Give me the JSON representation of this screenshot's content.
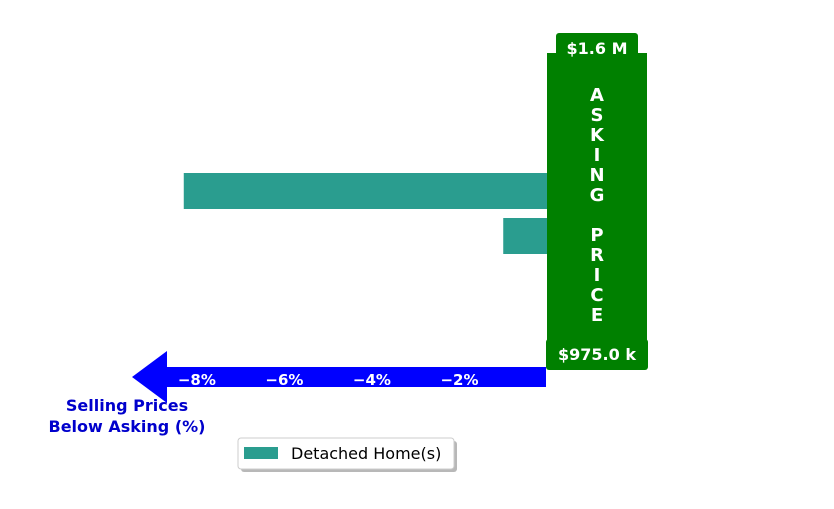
{
  "colors": {
    "bar": "#2a9d8f",
    "asking": "#008000",
    "arrow": "#0000ff",
    "axis_title": "#0000cc"
  },
  "chart_data": {
    "type": "bar",
    "orientation": "horizontal",
    "categories": [
      "",
      ""
    ],
    "series": [
      {
        "name": "Detached Home(s)",
        "values": [
          -8.3,
          -1.0
        ]
      }
    ],
    "xlim": [
      -9.3,
      0
    ],
    "xticks": [
      -8,
      -6,
      -4,
      -2
    ],
    "xtick_labels": [
      "−8%",
      "−6%",
      "−4%",
      "−2%"
    ],
    "xlabel": "Selling Prices\nBelow Asking (%)",
    "xlabel_lines": [
      "Selling Prices",
      "Below Asking (%)"
    ],
    "asking_price": {
      "label_letters": [
        "A",
        "S",
        "K",
        "I",
        "N",
        "G",
        "",
        "P",
        "R",
        "I",
        "C",
        "E"
      ],
      "top_label": "$1.6 M",
      "bottom_label": "$975.0 k"
    },
    "legend": {
      "entries": [
        "Detached Home(s)"
      ],
      "position": "bottom-center"
    }
  }
}
